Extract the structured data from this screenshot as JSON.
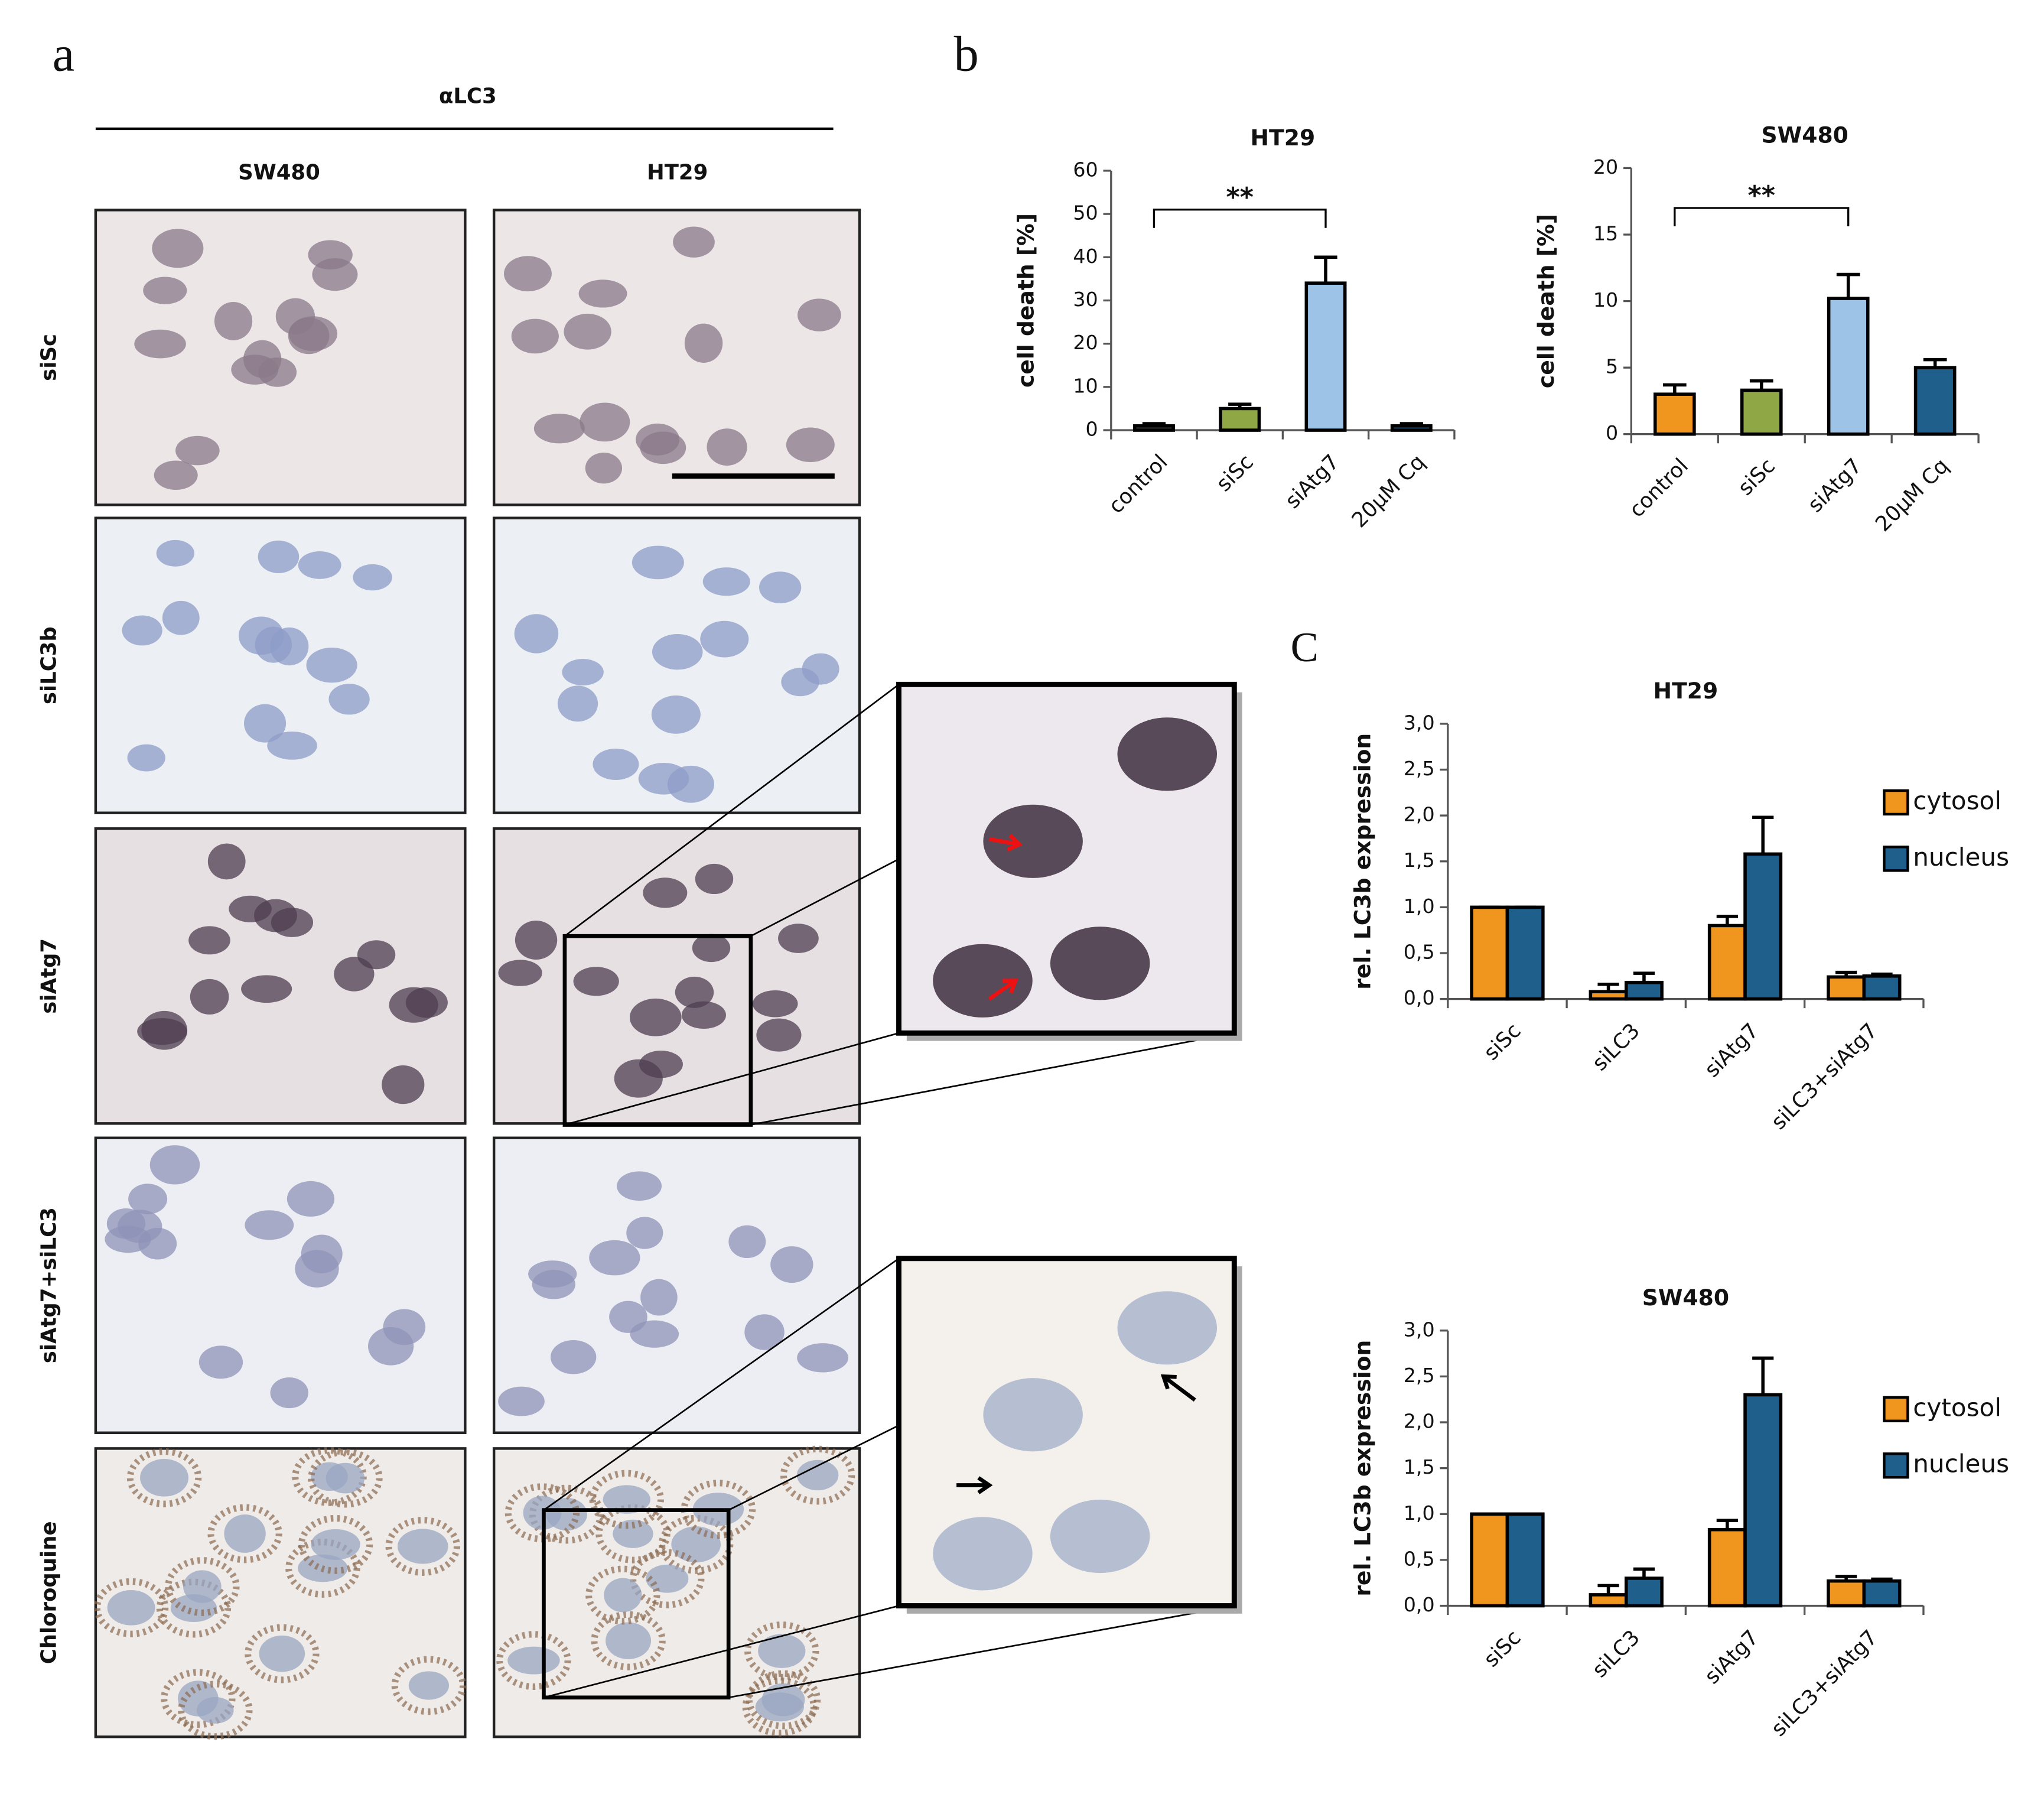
{
  "panels": {
    "a": "a",
    "b": "b",
    "c": "C"
  },
  "panel_a": {
    "stain": "αLC3",
    "columns": [
      "SW480",
      "HT29"
    ],
    "rows": [
      "siSc",
      "siLC3b",
      "siAtg7",
      "siAtg7+siLC3",
      "Chloroquine"
    ]
  },
  "chart_data": [
    {
      "type": "bar",
      "title": "HT29",
      "y_label": "cell death [%]",
      "categories": [
        "control",
        "siSc",
        "siAtg7",
        "20µM Cq"
      ],
      "values": [
        1,
        5,
        34,
        1
      ],
      "errors": [
        0.5,
        1,
        6,
        0.5
      ],
      "colors": [
        "#3a3a3a",
        "#8fa845",
        "#9dc3e6",
        "#2e4e6e"
      ],
      "ylim": [
        0,
        60
      ],
      "yticks": [
        0,
        10,
        20,
        30,
        40,
        50,
        60
      ],
      "annotation": "**"
    },
    {
      "type": "bar",
      "title": "SW480",
      "y_label": "cell death [%]",
      "categories": [
        "control",
        "siSc",
        "siAtg7",
        "20µM Cq"
      ],
      "values": [
        3,
        3.3,
        10.2,
        5
      ],
      "errors": [
        0.7,
        0.7,
        1.8,
        0.6
      ],
      "colors": [
        "#f0961e",
        "#8fa845",
        "#9dc3e6",
        "#1f5f8b"
      ],
      "ylim": [
        0,
        20
      ],
      "yticks": [
        0,
        5,
        10,
        15,
        20
      ],
      "annotation": "**"
    },
    {
      "type": "grouped-bar",
      "title": "HT29",
      "y_label": "rel. LC3b expression",
      "categories": [
        "siSc",
        "siLC3",
        "siAtg7",
        "siLC3+siAtg7"
      ],
      "series": [
        {
          "name": "cytosol",
          "color": "#f0961e",
          "values": [
            1.0,
            0.08,
            0.8,
            0.24
          ],
          "errors": [
            0,
            0.08,
            0.1,
            0.05
          ]
        },
        {
          "name": "nucleus",
          "color": "#1f5f8b",
          "values": [
            1.0,
            0.18,
            1.58,
            0.25
          ],
          "errors": [
            0,
            0.1,
            0.4,
            0.02
          ]
        }
      ],
      "ylim": [
        0,
        3
      ],
      "yticks": [
        {
          "value": 0,
          "label": "0,0"
        },
        {
          "value": 0.5,
          "label": "0,5"
        },
        {
          "value": 1,
          "label": "1,0"
        },
        {
          "value": 1.5,
          "label": "1,5"
        },
        {
          "value": 2,
          "label": "2,0"
        },
        {
          "value": 2.5,
          "label": "2,5"
        },
        {
          "value": 3,
          "label": "3,0"
        }
      ],
      "legend": "right"
    },
    {
      "type": "grouped-bar",
      "title": "SW480",
      "y_label": "rel. LC3b expression",
      "categories": [
        "siSc",
        "siLC3",
        "siAtg7",
        "siLC3+siAtg7"
      ],
      "series": [
        {
          "name": "cytosol",
          "color": "#f0961e",
          "values": [
            1.0,
            0.12,
            0.83,
            0.27
          ],
          "errors": [
            0,
            0.1,
            0.1,
            0.05
          ]
        },
        {
          "name": "nucleus",
          "color": "#1f5f8b",
          "values": [
            1.0,
            0.3,
            2.3,
            0.27
          ],
          "errors": [
            0,
            0.1,
            0.4,
            0.02
          ]
        }
      ],
      "ylim": [
        0,
        3
      ],
      "yticks": [
        {
          "value": 0,
          "label": "0,0"
        },
        {
          "value": 0.5,
          "label": "0,5"
        },
        {
          "value": 1,
          "label": "1,0"
        },
        {
          "value": 1.5,
          "label": "1,5"
        },
        {
          "value": 2,
          "label": "2,0"
        },
        {
          "value": 2.5,
          "label": "2,5"
        },
        {
          "value": 3,
          "label": "3,0"
        }
      ],
      "legend": "right"
    }
  ]
}
